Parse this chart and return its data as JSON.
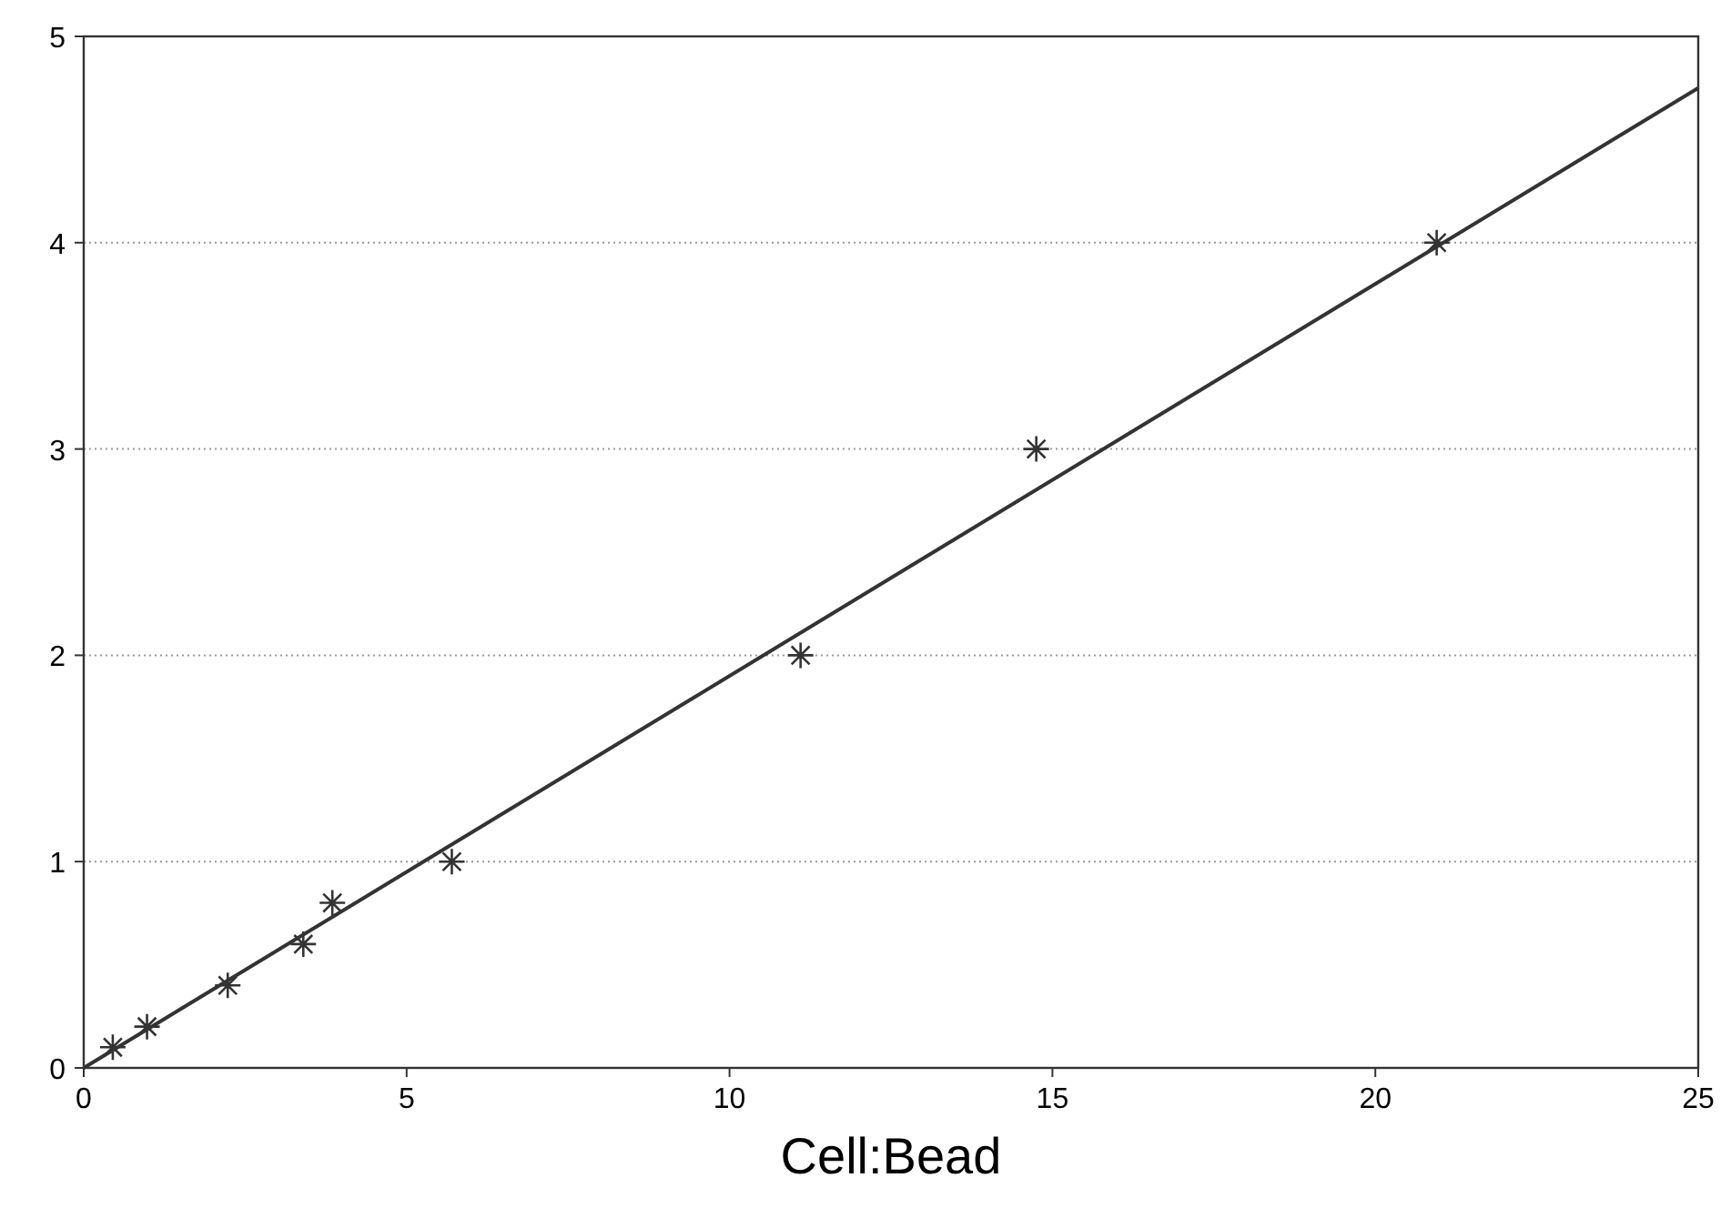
{
  "chart_data": {
    "type": "scatter",
    "xlabel": "Cell:Bead",
    "xlim": [
      0,
      25
    ],
    "ylim": [
      0,
      5
    ],
    "xticks": [
      0,
      5,
      10,
      15,
      20,
      25
    ],
    "yticks": [
      0,
      1,
      2,
      3,
      4,
      5
    ],
    "grid": "y",
    "series": [
      {
        "color": "#333333",
        "marker": "cross",
        "x": [
          0.45,
          0.98,
          2.23,
          3.4,
          3.85,
          5.7,
          11.1,
          14.75,
          20.95
        ],
        "values": [
          0.1,
          0.2,
          0.4,
          0.6,
          0.8,
          1,
          2,
          3,
          4
        ]
      },
      {
        "type": "line",
        "color": "#333333",
        "marker": "none",
        "line_style": "solid",
        "x": [
          0,
          25
        ],
        "values": [
          0,
          4.75
        ]
      }
    ]
  }
}
